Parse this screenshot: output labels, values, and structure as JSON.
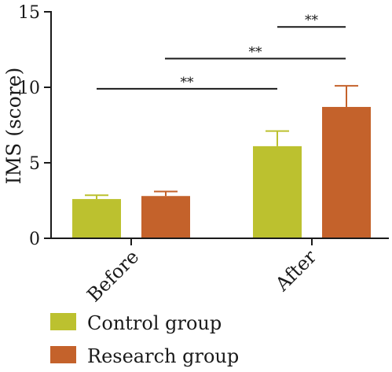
{
  "chart_data": {
    "type": "bar",
    "categories": [
      "Before",
      "After"
    ],
    "ylabel": "IMS (score)",
    "ylim": [
      0,
      15
    ],
    "yticks": [
      0,
      5,
      10,
      15
    ],
    "grid": false,
    "legend_position": "bottom-left",
    "series": [
      {
        "name": "Control group",
        "color": "#bcc12f",
        "values": [
          2.6,
          6.1
        ],
        "errors": [
          0.25,
          1.0
        ]
      },
      {
        "name": "Research group",
        "color": "#c4622b",
        "values": [
          2.8,
          8.7
        ],
        "errors": [
          0.3,
          1.4
        ]
      }
    ],
    "significance": [
      {
        "label": "**",
        "y": 9.9
      },
      {
        "label": "**",
        "y": 11.9
      },
      {
        "label": "**",
        "y": 14.0
      }
    ]
  }
}
